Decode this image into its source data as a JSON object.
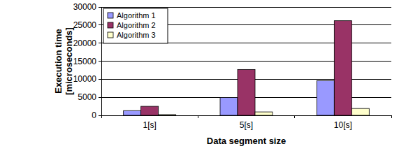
{
  "chart_data": {
    "type": "bar",
    "x_label": "Data segment size",
    "y_label": "Execution time [microseconds]",
    "categories": [
      "1[s]",
      "5[s]",
      "10[s]"
    ],
    "series": [
      {
        "name": "Algorithm 1",
        "color": "#9999ff",
        "values": [
          1300,
          4950,
          9600
        ]
      },
      {
        "name": "Algorithm 2",
        "color": "#993366",
        "values": [
          2500,
          12700,
          26200
        ]
      },
      {
        "name": "Algorithm 3",
        "color": "#ffffcc",
        "values": [
          200,
          950,
          1900
        ]
      }
    ],
    "ylim": [
      0,
      30000
    ],
    "yticks": [
      0,
      5000,
      10000,
      15000,
      20000,
      25000,
      30000
    ],
    "grid": true,
    "legend": "upper left"
  }
}
